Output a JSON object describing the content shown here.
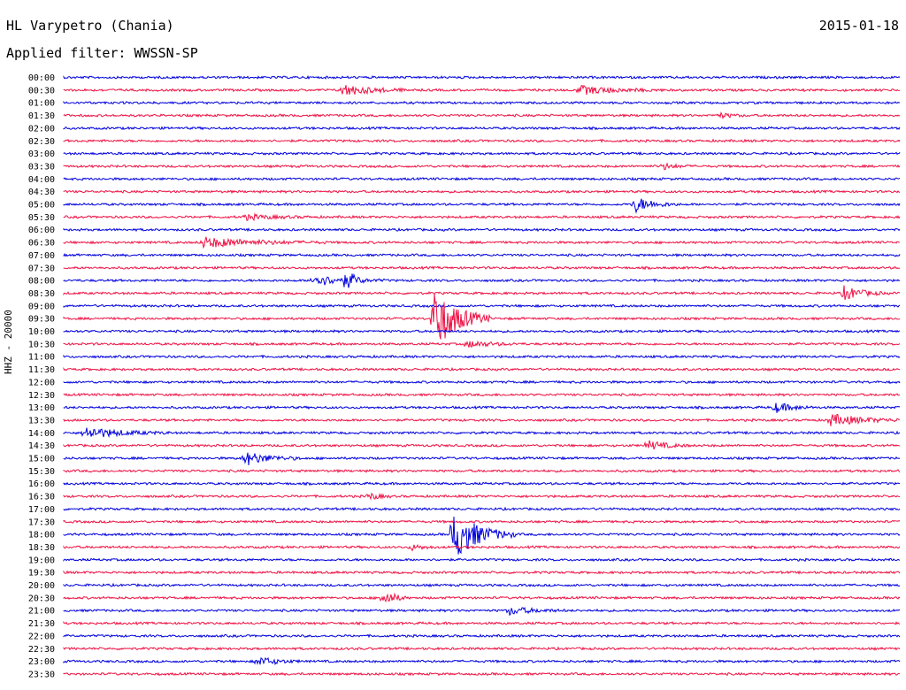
{
  "header": {
    "station": "HL Varypetro (Chania)",
    "date": "2015-01-18",
    "filter": "Applied filter: WWSSN-SP"
  },
  "chart_data": {
    "type": "line",
    "title": "HL Varypetro (Chania)",
    "subtitle": "Applied filter: WWSSN-SP",
    "ylabel": "HHZ - 20000",
    "xlabel": "",
    "colors": [
      "#0000dd",
      "#ee1144"
    ],
    "grid": false,
    "legend": "none",
    "row_labels": [
      "00:00",
      "00:30",
      "01:00",
      "01:30",
      "02:00",
      "02:30",
      "03:00",
      "03:30",
      "04:00",
      "04:30",
      "05:00",
      "05:30",
      "06:00",
      "06:30",
      "07:00",
      "07:30",
      "08:00",
      "08:30",
      "09:00",
      "09:30",
      "10:00",
      "10:30",
      "11:00",
      "11:30",
      "12:00",
      "12:30",
      "13:00",
      "13:30",
      "14:00",
      "14:30",
      "15:00",
      "15:30",
      "16:00",
      "16:30",
      "17:00",
      "17:30",
      "18:00",
      "18:30",
      "19:00",
      "19:30",
      "20:00",
      "20:30",
      "21:00",
      "21:30",
      "22:00",
      "22:30",
      "23:00",
      "23:30"
    ],
    "events": [
      {
        "row": "00:30",
        "minute": 10.0,
        "amplitude": 0.45,
        "duration": 2.5
      },
      {
        "row": "00:30",
        "minute": 18.5,
        "amplitude": 0.35,
        "duration": 3.0
      },
      {
        "row": "01:30",
        "minute": 23.5,
        "amplitude": 0.2,
        "duration": 1.0
      },
      {
        "row": "03:30",
        "minute": 21.5,
        "amplitude": 0.25,
        "duration": 1.0
      },
      {
        "row": "05:00",
        "minute": 20.5,
        "amplitude": 0.6,
        "duration": 1.5
      },
      {
        "row": "05:30",
        "minute": 6.5,
        "amplitude": 0.2,
        "duration": 2.5
      },
      {
        "row": "06:30",
        "minute": 5.0,
        "amplitude": 0.4,
        "duration": 4.5
      },
      {
        "row": "08:00",
        "minute": 9.0,
        "amplitude": 0.45,
        "duration": 2.5
      },
      {
        "row": "08:00",
        "minute": 10.2,
        "amplitude": 0.6,
        "duration": 0.6
      },
      {
        "row": "08:30",
        "minute": 28.0,
        "amplitude": 0.55,
        "duration": 1.5
      },
      {
        "row": "09:30",
        "minute": 13.3,
        "amplitude": 2.6,
        "duration": 2.0
      },
      {
        "row": "10:30",
        "minute": 14.5,
        "amplitude": 0.25,
        "duration": 2.0
      },
      {
        "row": "13:00",
        "minute": 25.5,
        "amplitude": 0.4,
        "duration": 1.5
      },
      {
        "row": "13:30",
        "minute": 27.5,
        "amplitude": 0.45,
        "duration": 3.0
      },
      {
        "row": "14:00",
        "minute": 0.8,
        "amplitude": 0.45,
        "duration": 3.0
      },
      {
        "row": "14:30",
        "minute": 21.0,
        "amplitude": 0.35,
        "duration": 1.5
      },
      {
        "row": "15:00",
        "minute": 6.5,
        "amplitude": 0.55,
        "duration": 2.0
      },
      {
        "row": "16:30",
        "minute": 11.0,
        "amplitude": 0.25,
        "duration": 0.8
      },
      {
        "row": "18:00",
        "minute": 14.0,
        "amplitude": 2.0,
        "duration": 2.2
      },
      {
        "row": "18:30",
        "minute": 12.5,
        "amplitude": 0.2,
        "duration": 1.0
      },
      {
        "row": "20:30",
        "minute": 11.5,
        "amplitude": 0.7,
        "duration": 0.8
      },
      {
        "row": "21:00",
        "minute": 16.0,
        "amplitude": 0.3,
        "duration": 2.0
      },
      {
        "row": "23:00",
        "minute": 7.0,
        "amplitude": 0.35,
        "duration": 1.5
      }
    ]
  }
}
